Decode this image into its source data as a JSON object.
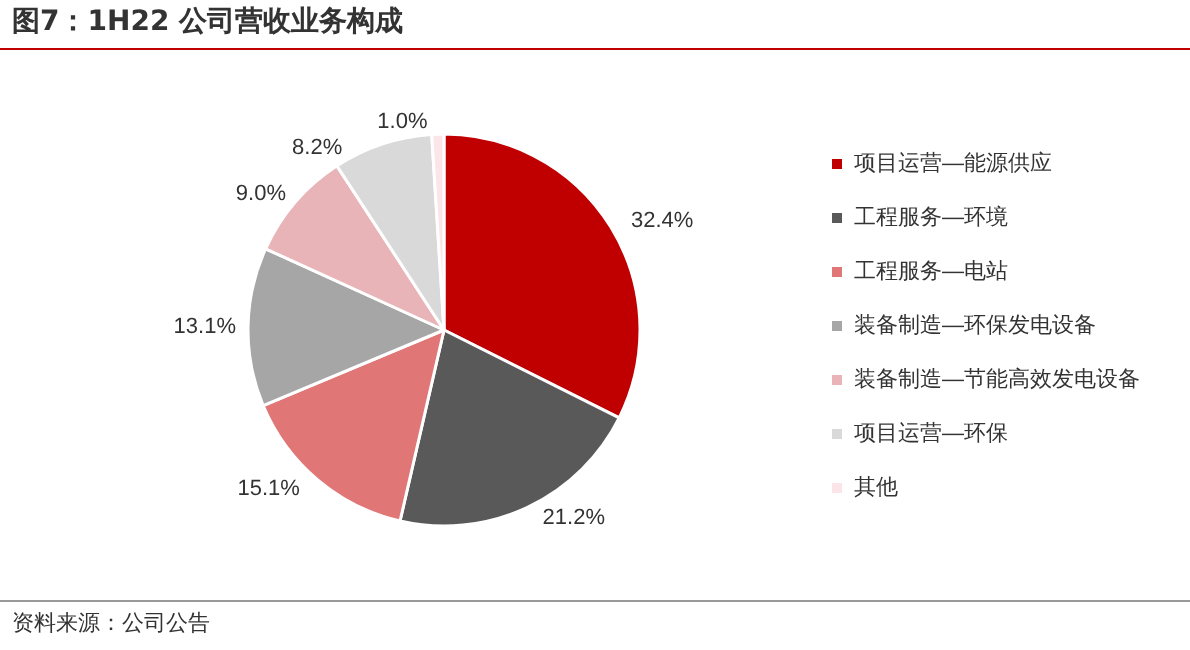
{
  "chart_data": {
    "type": "pie",
    "title": "图7：1H22 公司营收业务构成",
    "categories": [
      "项目运营—能源供应",
      "工程服务—环境",
      "工程服务—电站",
      "装备制造—环保发电设备",
      "装备制造—节能高效发电设备",
      "项目运营—环保",
      "其他"
    ],
    "values": [
      32.4,
      21.2,
      15.1,
      13.1,
      9.0,
      8.2,
      1.0
    ],
    "colors": [
      "#c00000",
      "#595959",
      "#e07676",
      "#a6a6a6",
      "#e8b4b8",
      "#d9d9d9",
      "#fbe5e8"
    ],
    "value_labels": [
      "32.4%",
      "21.2%",
      "15.1%",
      "13.1%",
      "9.0%",
      "8.2%",
      "1.0%"
    ],
    "legend": "right",
    "annotations": [
      "资料来源：公司公告"
    ]
  }
}
